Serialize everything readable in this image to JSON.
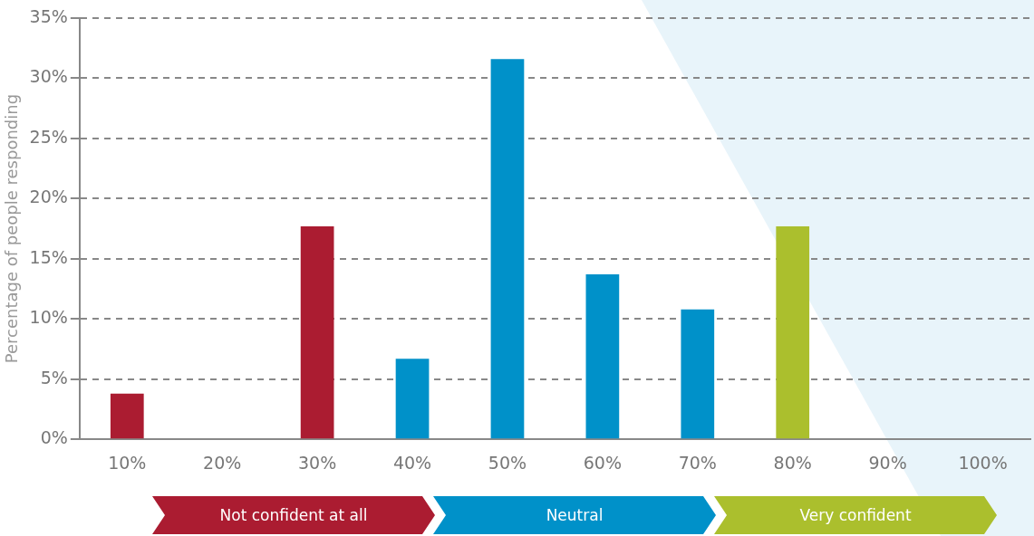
{
  "chart_data": {
    "type": "bar",
    "ylabel": "Percentage of people responding",
    "categories": [
      "10%",
      "20%",
      "30%",
      "40%",
      "50%",
      "60%",
      "70%",
      "80%",
      "90%",
      "100%"
    ],
    "values": [
      3.8,
      0,
      17.7,
      6.7,
      31.6,
      13.7,
      10.8,
      17.7,
      0,
      0
    ],
    "colors": [
      "#ab1c31",
      "#ab1c31",
      "#ab1c31",
      "#0091c9",
      "#0091c9",
      "#0091c9",
      "#0091c9",
      "#abbf2d",
      "#abbf2d",
      "#abbf2d"
    ],
    "ylim": [
      0,
      35
    ],
    "yticks": [
      {
        "value": 0,
        "label": "0%"
      },
      {
        "value": 5,
        "label": "5%"
      },
      {
        "value": 10,
        "label": "10%"
      },
      {
        "value": 15,
        "label": "15%"
      },
      {
        "value": 20,
        "label": "20%"
      },
      {
        "value": 25,
        "label": "25%"
      },
      {
        "value": 30,
        "label": "30%"
      },
      {
        "value": 35,
        "label": "35%"
      }
    ],
    "grid": "y",
    "line_style": "dashed",
    "legend": false,
    "annotations": [
      "Not confident at all",
      "Neutral",
      "Very confident"
    ]
  }
}
